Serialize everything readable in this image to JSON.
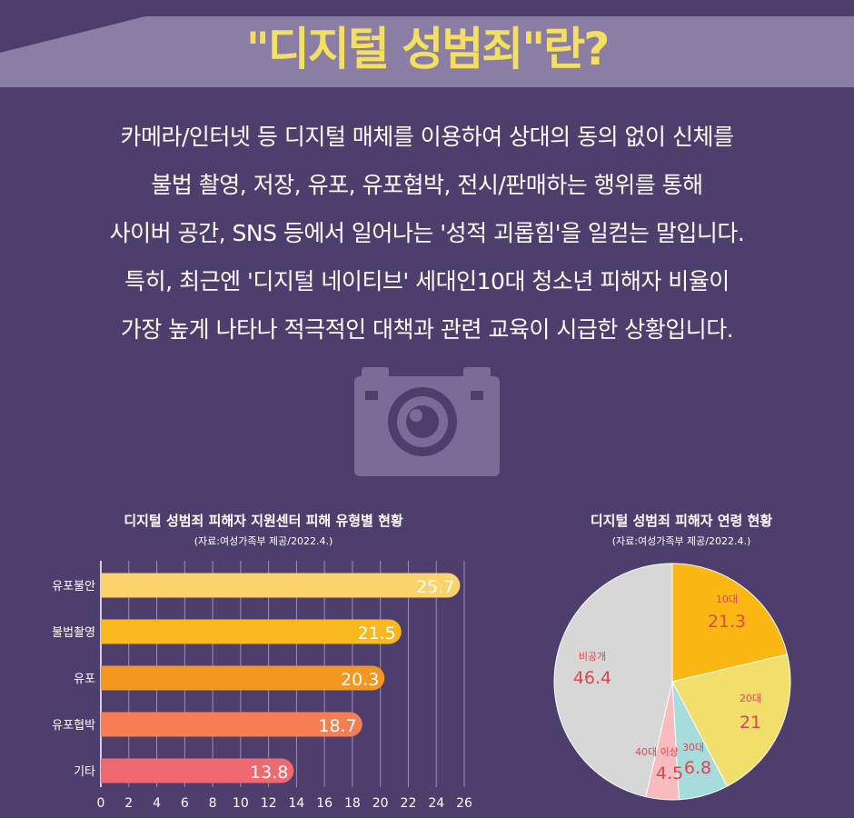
{
  "title": "\"디지털 성범죄\"란?",
  "intro_lines": [
    "카메라/인터넷 등 디지털 매체를 이용하여 상대의 동의 없이 신체를",
    "불법 촬영, 저장, 유포, 유포협박, 전시/판매하는 행위를 통해",
    "사이버 공간, SNS 등에서 일어나는 '성적 괴롭힘'을 일컫는 말입니다.",
    "특히, 최근엔 '디지털 네이티브' 세대인10대 청소년 피해자 비율이",
    "가장 높게 나타나 적극적인 대책과 관련 교육이 시급한 상황입니다."
  ],
  "icon": "camera-icon",
  "colors": {
    "background": "#4e3e6e",
    "band": "#8a7ea4",
    "title": "#f5df5e",
    "camera": "#7a6c97"
  },
  "chart_data": [
    {
      "type": "bar",
      "orientation": "horizontal",
      "title": "디지털 성범죄 피해자 지원센터 피해 유형별 현황",
      "source": "(자료:여성가족부 제공/2022.4.)",
      "categories": [
        "유포불안",
        "불법촬영",
        "유포",
        "유포협박",
        "기타"
      ],
      "values": [
        25.7,
        21.5,
        20.3,
        18.7,
        13.8
      ],
      "value_labels": [
        "25.7",
        "21.5",
        "20.3",
        "18.7",
        "13.8"
      ],
      "colors": [
        "#fbd36c",
        "#f8b81e",
        "#f29821",
        "#f77d52",
        "#ee6a70"
      ],
      "xlim": [
        0,
        26
      ],
      "xticks": [
        "0",
        "2",
        "4",
        "6",
        "8",
        "10",
        "12",
        "14",
        "16",
        "18",
        "20",
        "22",
        "24",
        "26"
      ],
      "grid": true
    },
    {
      "type": "pie",
      "title": "디지털 성범죄 피해자 연령 현황",
      "source": "(자료:여성가족부 제공/2022.4.)",
      "slices": [
        {
          "label": "10대",
          "value": 21.3,
          "value_label": "21.3",
          "color": "#fbb714"
        },
        {
          "label": "20대",
          "value": 21,
          "value_label": "21",
          "color": "#f2de6a"
        },
        {
          "label": "30대",
          "value": 6.8,
          "value_label": "6.8",
          "color": "#a6dcdb"
        },
        {
          "label": "40대 이상",
          "value": 4.5,
          "value_label": "4.5",
          "color": "#f8bcbe"
        },
        {
          "label": "비공개",
          "value": 46.4,
          "value_label": "46.4",
          "color": "#d7d7d7"
        }
      ],
      "label_color": "#e2454e"
    }
  ]
}
